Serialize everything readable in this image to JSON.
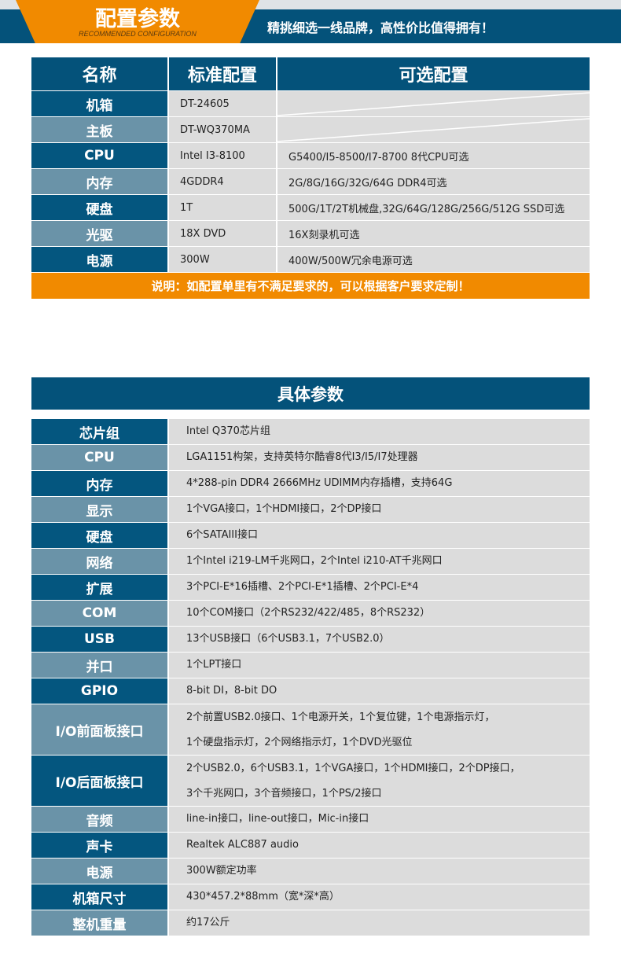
{
  "banner": {
    "title": "配置参数",
    "subtitle": "RECOMMENDED CONFIGURATION",
    "slogan": "精挑细选一线品牌，高性价比值得拥有！"
  },
  "config": {
    "headers": [
      "名称",
      "标准配置",
      "可选配置"
    ],
    "rows": [
      {
        "name": "机箱",
        "standard": "DT-24605",
        "optional": ""
      },
      {
        "name": "主板",
        "standard": "DT-WQ370MA",
        "optional": ""
      },
      {
        "name": "CPU",
        "standard": "Intel I3-8100",
        "optional": "G5400/I5-8500/I7-8700 8代CPU可选"
      },
      {
        "name": "内存",
        "standard": "4GDDR4",
        "optional": "2G/8G/16G/32G/64G DDR4可选"
      },
      {
        "name": "硬盘",
        "standard": "1T",
        "optional": "500G/1T/2T机械盘,32G/64G/128G/256G/512G SSD可选"
      },
      {
        "name": "光驱",
        "standard": "18X DVD",
        "optional": "16X刻录机可选"
      },
      {
        "name": "电源",
        "standard": "300W",
        "optional": "400W/500W冗余电源可选"
      }
    ],
    "note": "说明：如配置单里有不满足要求的，可以根据客户要求定制！"
  },
  "specs": {
    "title": "具体参数",
    "rows": [
      {
        "name": "芯片组",
        "lines": [
          "Intel Q370芯片组"
        ]
      },
      {
        "name": "CPU",
        "lines": [
          "LGA1151构架，支持英特尔酷睿8代I3/I5/I7处理器"
        ]
      },
      {
        "name": "内存",
        "lines": [
          "4*288-pin DDR4 2666MHz  UDIMM内存插槽，支持64G"
        ]
      },
      {
        "name": "显示",
        "lines": [
          "1个VGA接口，1个HDMI接口，2个DP接口"
        ]
      },
      {
        "name": "硬盘",
        "lines": [
          "6个SATAIII接口"
        ]
      },
      {
        "name": "网络",
        "lines": [
          "1个Intel i219-LM千兆网口，2个Intel i210-AT千兆网口"
        ]
      },
      {
        "name": "扩展",
        "lines": [
          "3个PCI-E*16插槽、2个PCI-E*1插槽、2个PCI-E*4"
        ]
      },
      {
        "name": "COM",
        "lines": [
          "10个COM接口（2个RS232/422/485，8个RS232）"
        ]
      },
      {
        "name": "USB",
        "lines": [
          "13个USB接口（6个USB3.1，7个USB2.0）"
        ]
      },
      {
        "name": "并口",
        "lines": [
          "1个LPT接口"
        ]
      },
      {
        "name": "GPIO",
        "lines": [
          "8-bit DI，8-bit DO"
        ]
      },
      {
        "name": "I/O前面板接口",
        "lines": [
          "2个前置USB2.0接口、1个电源开关，1个复位键，1个电源指示灯，",
          "1个硬盘指示灯，2个网络指示灯，1个DVD光驱位"
        ]
      },
      {
        "name": "I/O后面板接口",
        "lines": [
          "2个USB2.0，6个USB3.1，1个VGA接口，1个HDMI接口，2个DP接口，",
          "3个千兆网口，3个音频接口，1个PS/2接口"
        ]
      },
      {
        "name": "音频",
        "lines": [
          "line-in接口，line-out接口，Mic-in接口"
        ]
      },
      {
        "name": "声卡",
        "lines": [
          "Realtek  ALC887 audio"
        ]
      },
      {
        "name": "电源",
        "lines": [
          "300W额定功率"
        ]
      },
      {
        "name": "机箱尺寸",
        "lines": [
          "430*457.2*88mm（宽*深*高）"
        ]
      },
      {
        "name": "整机重量",
        "lines": [
          "约17公斤"
        ]
      }
    ]
  },
  "colors": {
    "blue": "#04527a",
    "light_blue": "#6a93a8",
    "orange": "#f18a00",
    "cell": "#dcdcdc"
  }
}
